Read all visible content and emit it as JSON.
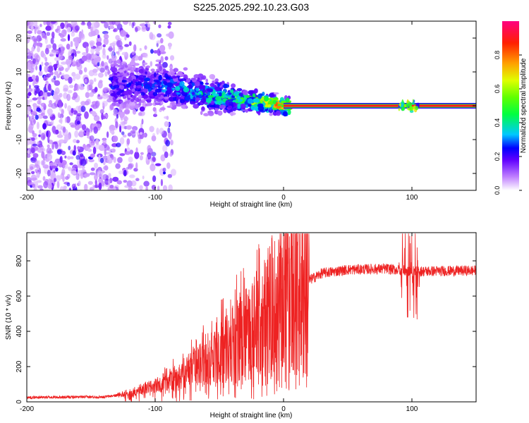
{
  "title": "S225.2025.292.10.23.G03",
  "chart_data": [
    {
      "type": "heatmap",
      "id": "spectrogram",
      "xlabel": "Height of straight line (km)",
      "ylabel": "Frequency (Hz)",
      "xlim": [
        -200,
        150
      ],
      "ylim": [
        -25,
        25
      ],
      "xticks": [
        -200,
        -100,
        0,
        100
      ],
      "yticks": [
        -20,
        -10,
        0,
        10,
        20
      ],
      "colorbar": {
        "label": "Normalized spectral amplitude",
        "range": [
          0,
          1
        ],
        "ticks": [
          "0.0",
          "0.2",
          "0.4",
          "0.6",
          "0.8"
        ],
        "tick_values": [
          0.0,
          0.2,
          0.4,
          0.6,
          0.8
        ],
        "colors": [
          "#ffffff",
          "#a000ff",
          "#4000ff",
          "#0000ff",
          "#00c8ff",
          "#00ff80",
          "#80ff00",
          "#ffff00",
          "#ff8000",
          "#ff0000",
          "#ff0080"
        ]
      },
      "ridge": [
        {
          "x": -120,
          "y": 6,
          "a": 0.25
        },
        {
          "x": -100,
          "y": 6,
          "a": 0.3
        },
        {
          "x": -80,
          "y": 5,
          "a": 0.35
        },
        {
          "x": -60,
          "y": 3,
          "a": 0.45
        },
        {
          "x": -45,
          "y": 2.5,
          "a": 0.5
        },
        {
          "x": -30,
          "y": 1.5,
          "a": 0.55
        },
        {
          "x": -15,
          "y": 1,
          "a": 0.75
        },
        {
          "x": -5,
          "y": 0.5,
          "a": 0.85
        },
        {
          "x": 0,
          "y": 0,
          "a": 0.95
        },
        {
          "x": 150,
          "y": 0,
          "a": 0.95
        }
      ]
    },
    {
      "type": "line",
      "id": "snr",
      "xlabel": "Height of straight line (km)",
      "ylabel": "SNR (10 * v/v)",
      "xlim": [
        -200,
        150
      ],
      "ylim": [
        0,
        960
      ],
      "xticks": [
        -200,
        -100,
        0,
        100
      ],
      "yticks": [
        0,
        200,
        400,
        600,
        800
      ],
      "color": "#ee2222",
      "envelope": [
        {
          "x": -200,
          "y": 25
        },
        {
          "x": -140,
          "y": 28
        },
        {
          "x": -120,
          "y": 45
        },
        {
          "x": -100,
          "y": 90
        },
        {
          "x": -80,
          "y": 150
        },
        {
          "x": -60,
          "y": 230
        },
        {
          "x": -40,
          "y": 320
        },
        {
          "x": -20,
          "y": 420
        },
        {
          "x": 0,
          "y": 540
        },
        {
          "x": 10,
          "y": 620
        },
        {
          "x": 20,
          "y": 690
        },
        {
          "x": 30,
          "y": 730
        },
        {
          "x": 50,
          "y": 750
        },
        {
          "x": 80,
          "y": 755
        },
        {
          "x": 100,
          "y": 740
        },
        {
          "x": 150,
          "y": 745
        }
      ]
    }
  ]
}
